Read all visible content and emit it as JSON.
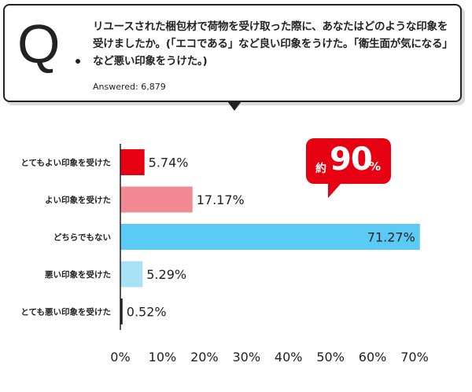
{
  "question": {
    "mark": "Q",
    "text": "リユースされた梱包材で荷物を受け取った際に、あなたはどのような印象を受けましたか。(「エコである」など良い印象をうけた。「衛生面が気になる」など悪い印象をうけた。)",
    "answered": "Answered: 6,879"
  },
  "badge": {
    "prefix": "約",
    "value": "90",
    "suffix": "%"
  },
  "colors": {
    "bar_colors": [
      "#e60012",
      "#f28a94",
      "#5bcbf5",
      "#a9e1f7",
      "#222222"
    ]
  },
  "chart_data": {
    "type": "bar",
    "orientation": "horizontal",
    "categories": [
      "とてもよい印象を受けた",
      "よい印象を受けた",
      "どちらでもない",
      "悪い印象を受けた",
      "とても悪い印象を受けた"
    ],
    "values": [
      5.74,
      17.17,
      71.27,
      5.29,
      0.52
    ],
    "value_labels": [
      "5.74%",
      "17.17%",
      "71.27%",
      "5.29%",
      "0.52%"
    ],
    "xlim": [
      0,
      70
    ],
    "ticks": [
      "0%",
      "10%",
      "20%",
      "30%",
      "40%",
      "50%",
      "60%",
      "70%"
    ],
    "grid": false,
    "legend": "none"
  }
}
